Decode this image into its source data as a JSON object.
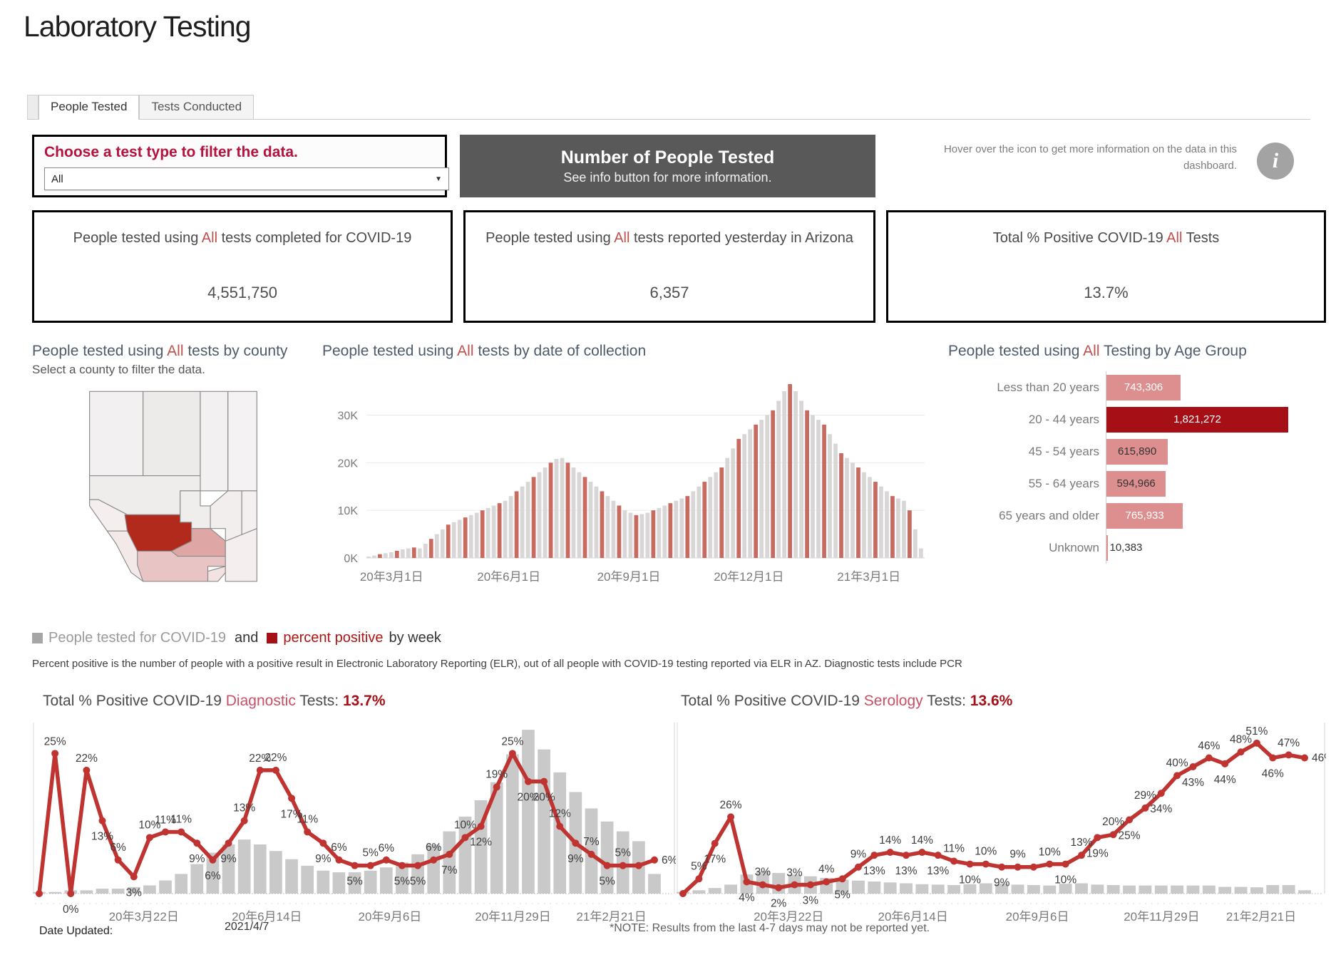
{
  "page": {
    "title": "Laboratory Testing"
  },
  "tabs": [
    {
      "label": "People Tested",
      "active": true
    },
    {
      "label": "Tests Conducted",
      "active": false
    }
  ],
  "filter": {
    "label": "Choose a test type to filter the data.",
    "value": "All"
  },
  "banner": {
    "title": "Number of People Tested",
    "subtitle": "See info button for more information."
  },
  "info": {
    "text": "Hover over the icon to get more information on the data in this dashboard.",
    "icon": "info-icon",
    "icon_glyph": "i"
  },
  "stats": [
    {
      "pre": "People tested using ",
      "accent": "All",
      "post": " tests completed for COVID-19",
      "value": "4,551,750"
    },
    {
      "pre": "People tested using ",
      "accent": "All",
      "post": " tests reported yesterday in Arizona",
      "value": "6,357"
    },
    {
      "pre": "Total % Positive COVID-19 ",
      "accent": "All",
      "post": " Tests",
      "value": "13.7%"
    }
  ],
  "map": {
    "title_pre": "People tested using ",
    "title_accent": "All",
    "title_post": " tests by county",
    "subtitle": "Select a county to filter the data.",
    "county_colors": {
      "mohave": "#f2f0f0",
      "coconino": "#edeaea",
      "navajo": "#f2f0f0",
      "apache": "#f4f2f2",
      "yavapai": "#efecec",
      "lapaz": "#f4eeee",
      "yuma": "#f3e9e9",
      "maricopa": "#b12a1c",
      "gila": "#f0eded",
      "graham": "#f2eeee",
      "greenlee": "#f4f0f0",
      "pinal": "#dfa6a6",
      "pima": "#e9c4c4",
      "santacruz": "#f2e2e2",
      "cochise": "#f4eeee"
    }
  },
  "legend": {
    "gray_label": "People tested for COVID-19",
    "connector": "and",
    "red_label": "percent positive",
    "suffix": "by week",
    "gray_color": "#a6a6a6",
    "red_color": "#a50f15"
  },
  "pp_note": "Percent positive is the number of people with a positive result in Electronic Laboratory Reporting (ELR), out of all people with COVID-19 testing reported via ELR in AZ. Diagnostic tests include PCR",
  "footer": {
    "label": "Date Updated:",
    "date": "2021/4/7",
    "note": "*NOTE: Results from the last 4-7 days may not be reported yet."
  },
  "colors": {
    "accent_red": "#c0504d",
    "dark_red": "#a50f15",
    "crimson": "#b5123e",
    "rose": "#c75064",
    "line_red": "#bf3430",
    "bar_gray": "#c9c9c9",
    "banner_bg": "#595959"
  },
  "chart_data": [
    {
      "id": "people-tested-by-date-of-collection",
      "type": "bar",
      "title_pre": "People tested using ",
      "title_accent": "All",
      "title_post": " tests by date of collection",
      "y_ticks": [
        "0K",
        "10K",
        "20K",
        "30K"
      ],
      "ylim_thousands": [
        0,
        38
      ],
      "grid": true,
      "x_tick_labels": [
        "20年3月1日",
        "20年6月1日",
        "20年9月1日",
        "20年12月1日",
        "21年3月1日"
      ],
      "bar_color": "#d8d6d6",
      "accent_bar_color": "#c96a60",
      "values_thousands": [
        0.3,
        0.5,
        0.8,
        1,
        1.2,
        1.5,
        1.8,
        2,
        2.2,
        2,
        3,
        4,
        5,
        6,
        7,
        7.5,
        8,
        8.5,
        9,
        9.5,
        10,
        10.5,
        11,
        11.5,
        12,
        13,
        14,
        15,
        16,
        17,
        18,
        19,
        20,
        20.8,
        21,
        20,
        19,
        18,
        17,
        16,
        15,
        14,
        13,
        12,
        11,
        10,
        9.5,
        9,
        9.2,
        9.5,
        10,
        10.5,
        11,
        11.5,
        12,
        12.5,
        13,
        14,
        15,
        16,
        17,
        18,
        19,
        21,
        23,
        25,
        26,
        27,
        28,
        29,
        30,
        31,
        33,
        35,
        36.5,
        35,
        33,
        31,
        30,
        29,
        28,
        26,
        24,
        22,
        21,
        20,
        19,
        18,
        17,
        16,
        15,
        14,
        13,
        12.5,
        12,
        10,
        6,
        2
      ]
    },
    {
      "id": "people-tested-by-age-group",
      "type": "bar",
      "orientation": "horizontal",
      "title_pre": "People tested using ",
      "title_accent": "All",
      "title_post": " Testing by Age Group",
      "categories": [
        "Less than 20 years",
        "20 - 44 years",
        "45 - 54 years",
        "55 - 64 years",
        "65 years and older",
        "Unknown"
      ],
      "values": [
        743306,
        1821272,
        615890,
        594966,
        765933,
        10383
      ],
      "value_labels": [
        "743,306",
        "1,821,272",
        "615,890",
        "594,966",
        "765,933",
        "10,383"
      ],
      "bar_colors": [
        "#dd8f8f",
        "#a50f15",
        "#dd8f8f",
        "#dd8f8f",
        "#dd8f8f",
        "#dd8f8f"
      ],
      "value_text_colors": [
        "#ffffff",
        "#ffffff",
        "#333333",
        "#333333",
        "#ffffff",
        "#333333"
      ],
      "value_inside": [
        true,
        true,
        true,
        true,
        true,
        false
      ]
    },
    {
      "id": "percent-positive-diagnostic",
      "type": "combo",
      "title_pre": "Total % Positive COVID-19 ",
      "title_accent": "Diagnostic",
      "title_post": " Tests: ",
      "title_value": "13.7%",
      "x_tick_labels": [
        "20年3月22日",
        "20年6月14日",
        "20年9月6日",
        "20年11月29日",
        "21年2月21日"
      ],
      "line_unit": "%",
      "line_ymax": 30,
      "line_percent": [
        0,
        25,
        0,
        22,
        13,
        6,
        3,
        10,
        11,
        11,
        9,
        6,
        9,
        13,
        22,
        22,
        17,
        11,
        9,
        6,
        5,
        5,
        6,
        5,
        5,
        6,
        7,
        10,
        12,
        19,
        25,
        20,
        20,
        12,
        9,
        7,
        5,
        5,
        5,
        6
      ],
      "bars_relative": [
        1,
        1,
        2,
        2,
        3,
        3,
        4,
        5,
        8,
        12,
        18,
        25,
        30,
        33,
        30,
        26,
        21,
        17,
        14,
        13,
        13,
        14,
        16,
        19,
        24,
        30,
        38,
        47,
        57,
        68,
        85,
        100,
        88,
        74,
        62,
        52,
        44,
        38,
        32,
        12
      ],
      "bar_height_fraction": 0.95
    },
    {
      "id": "percent-positive-serology",
      "type": "combo",
      "title_pre": "Total % Positive COVID-19 ",
      "title_accent": "Serology",
      "title_post": " Tests: ",
      "title_value": "13.6%",
      "x_tick_labels": [
        "20年3月22日",
        "20年6月14日",
        "20年9月6日",
        "20年11月29日",
        "21年2月21日"
      ],
      "line_unit": "%",
      "line_ymax": 57,
      "line_percent": [
        0,
        5,
        17,
        26,
        4,
        3,
        2,
        3,
        3,
        4,
        5,
        9,
        13,
        14,
        13,
        14,
        13,
        11,
        10,
        10,
        9,
        9,
        9,
        10,
        10,
        13,
        19,
        20,
        25,
        29,
        34,
        40,
        43,
        46,
        44,
        48,
        51,
        46,
        47,
        46
      ],
      "bars_relative": [
        8,
        15,
        25,
        40,
        85,
        100,
        92,
        85,
        77,
        70,
        62,
        58,
        54,
        50,
        46,
        42,
        40,
        38,
        42,
        46,
        44,
        40,
        38,
        36,
        44,
        46,
        40,
        38,
        36,
        36,
        36,
        36,
        36,
        36,
        30,
        30,
        28,
        38,
        38,
        15
      ],
      "bar_height_fraction": 0.13
    }
  ]
}
